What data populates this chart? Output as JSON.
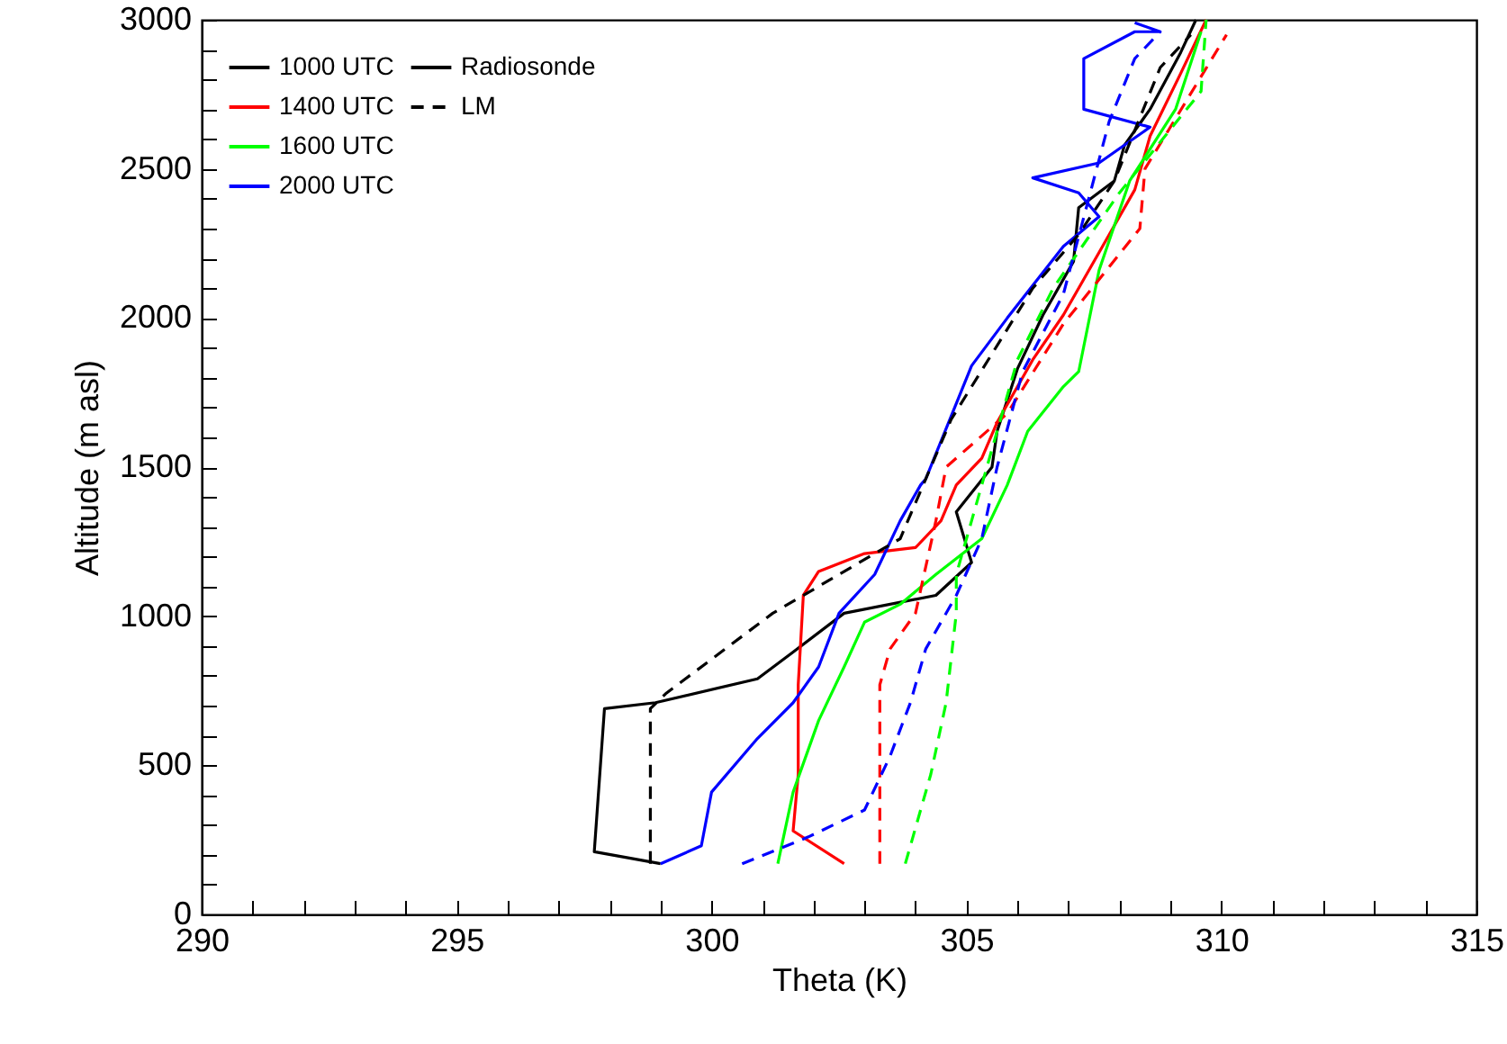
{
  "chart_data": {
    "type": "line",
    "xlabel": "Theta (K)",
    "ylabel": "Altitude (m asl)",
    "xlim": [
      290,
      315
    ],
    "ylim": [
      0,
      3000
    ],
    "xticks": [
      290,
      {
        "value": 291,
        "label": null
      },
      {
        "value": 292,
        "label": null
      },
      {
        "value": 293,
        "label": null
      },
      {
        "value": 294,
        "label": null
      },
      295,
      {
        "value": 296,
        "label": null
      },
      {
        "value": 297,
        "label": null
      },
      {
        "value": 298,
        "label": null
      },
      {
        "value": 299,
        "label": null
      },
      300,
      {
        "value": 301,
        "label": null
      },
      {
        "value": 302,
        "label": null
      },
      {
        "value": 303,
        "label": null
      },
      {
        "value": 304,
        "label": null
      },
      305,
      {
        "value": 306,
        "label": null
      },
      {
        "value": 307,
        "label": null
      },
      {
        "value": 308,
        "label": null
      },
      {
        "value": 309,
        "label": null
      },
      310,
      {
        "value": 311,
        "label": null
      },
      {
        "value": 312,
        "label": null
      },
      {
        "value": 313,
        "label": null
      },
      {
        "value": 314,
        "label": null
      },
      315
    ],
    "yticks": [
      0,
      {
        "value": 100,
        "label": null
      },
      {
        "value": 200,
        "label": null
      },
      {
        "value": 300,
        "label": null
      },
      {
        "value": 400,
        "label": null
      },
      500,
      {
        "value": 600,
        "label": null
      },
      {
        "value": 700,
        "label": null
      },
      {
        "value": 800,
        "label": null
      },
      {
        "value": 900,
        "label": null
      },
      1000,
      {
        "value": 1100,
        "label": null
      },
      {
        "value": 1200,
        "label": null
      },
      {
        "value": 1300,
        "label": null
      },
      {
        "value": 1400,
        "label": null
      },
      1500,
      {
        "value": 1600,
        "label": null
      },
      {
        "value": 1700,
        "label": null
      },
      {
        "value": 1800,
        "label": null
      },
      {
        "value": 1900,
        "label": null
      },
      2000,
      {
        "value": 2100,
        "label": null
      },
      {
        "value": 2200,
        "label": null
      },
      {
        "value": 2300,
        "label": null
      },
      {
        "value": 2400,
        "label": null
      },
      2500,
      {
        "value": 2600,
        "label": null
      },
      {
        "value": 2700,
        "label": null
      },
      {
        "value": 2800,
        "label": null
      },
      {
        "value": 2900,
        "label": null
      },
      3000
    ],
    "grid": false,
    "legend": "top left",
    "marker": "none",
    "annotations": [
      "Radiosonde",
      "LM"
    ],
    "series": [
      {
        "name": "1000 UTC",
        "color": "#000000",
        "line_style": "solid",
        "x": [
          299.0,
          297.7,
          297.9,
          298.9,
          300.9,
          301.6,
          302.6,
          304.4,
          305.1,
          304.8,
          305.5,
          305.6,
          306.0,
          306.5,
          307.1,
          307.2,
          307.9,
          308.1,
          308.6,
          309.2,
          309.5
        ],
        "values": [
          170,
          210,
          690,
          710,
          790,
          880,
          1010,
          1070,
          1180,
          1350,
          1500,
          1620,
          1830,
          2010,
          2190,
          2370,
          2460,
          2580,
          2700,
          2890,
          3000
        ]
      },
      {
        "name": "1400 UTC",
        "color": "#ff0000",
        "line_style": "solid",
        "x": [
          302.6,
          301.6,
          301.7,
          301.7,
          301.8,
          302.1,
          303.0,
          304.0,
          304.5,
          304.8,
          305.3,
          305.6,
          306.3,
          306.9,
          307.6,
          308.3,
          308.6,
          309.2,
          309.7
        ],
        "values": [
          170,
          280,
          470,
          770,
          1070,
          1150,
          1210,
          1230,
          1320,
          1440,
          1530,
          1650,
          1860,
          2010,
          2220,
          2430,
          2610,
          2820,
          3000
        ]
      },
      {
        "name": "1600 UTC",
        "color": "#00ff00",
        "line_style": "solid",
        "x": [
          301.3,
          301.6,
          302.1,
          302.6,
          303.0,
          303.7,
          304.4,
          305.3,
          305.8,
          306.2,
          306.9,
          307.2,
          307.6,
          308.2,
          309.1,
          309.6
        ],
        "values": [
          170,
          410,
          650,
          830,
          980,
          1040,
          1140,
          1260,
          1440,
          1620,
          1770,
          1820,
          2160,
          2460,
          2700,
          2960
        ]
      },
      {
        "name": "2000 UTC",
        "color": "#0000ff",
        "line_style": "solid",
        "x": [
          299.0,
          299.8,
          300.0,
          300.9,
          301.6,
          302.1,
          302.5,
          303.2,
          303.7,
          304.1,
          304.2,
          305.1,
          305.8,
          306.9,
          307.6,
          307.2,
          306.3,
          307.6,
          308.6,
          307.3,
          307.3,
          308.3,
          308.8,
          308.3
        ],
        "values": [
          170,
          230,
          410,
          590,
          710,
          830,
          1010,
          1140,
          1320,
          1440,
          1460,
          1840,
          2000,
          2240,
          2340,
          2420,
          2470,
          2520,
          2640,
          2700,
          2870,
          2960,
          2960,
          2990
        ]
      },
      {
        "color": "#000000",
        "line_style": "dashed",
        "x": [
          298.8,
          298.8,
          299.1,
          301.2,
          303.7,
          304.7,
          306.3,
          307.2,
          307.9,
          308.8,
          309.4
        ],
        "values": [
          170,
          690,
          740,
          1010,
          1260,
          1660,
          2100,
          2280,
          2460,
          2840,
          2950
        ]
      },
      {
        "color": "#ff0000",
        "line_style": "dashed",
        "x": [
          303.3,
          303.3,
          303.5,
          304.0,
          304.4,
          304.6,
          305.8,
          306.9,
          308.4,
          308.5,
          310.1
        ],
        "values": [
          170,
          770,
          890,
          1010,
          1320,
          1500,
          1680,
          1980,
          2300,
          2500,
          2950
        ]
      },
      {
        "color": "#00ff00",
        "line_style": "dashed",
        "x": [
          303.8,
          304.0,
          304.3,
          304.6,
          304.8,
          304.8,
          305.1,
          305.6,
          306.0,
          306.7,
          308.0,
          309.6,
          309.7
        ],
        "values": [
          170,
          290,
          470,
          710,
          1010,
          1140,
          1320,
          1620,
          1860,
          2100,
          2420,
          2760,
          3000
        ]
      },
      {
        "color": "#0000ff",
        "line_style": "dashed",
        "x": [
          300.6,
          301.9,
          303.0,
          303.5,
          303.9,
          304.2,
          304.8,
          305.3,
          305.6,
          306.1,
          306.9,
          307.8,
          308.3,
          308.8
        ],
        "values": [
          170,
          260,
          350,
          530,
          710,
          890,
          1070,
          1260,
          1500,
          1820,
          2080,
          2660,
          2870,
          2960
        ]
      }
    ]
  }
}
